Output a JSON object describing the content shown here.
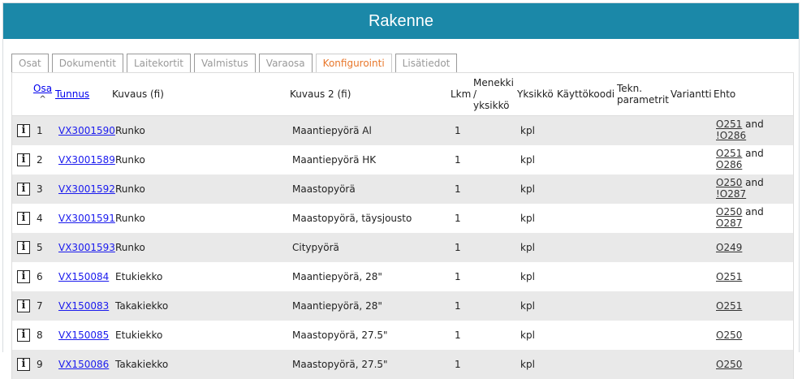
{
  "title": "Rakenne",
  "tabs": [
    {
      "label": "Osat",
      "active": false
    },
    {
      "label": "Dokumentit",
      "active": false
    },
    {
      "label": "Laitekortit",
      "active": false
    },
    {
      "label": "Valmistus",
      "active": false
    },
    {
      "label": "Varaosa",
      "active": false
    },
    {
      "label": "Konfigurointi",
      "active": true
    },
    {
      "label": "Lisätiedot",
      "active": false
    }
  ],
  "columns": {
    "osa": "Osa",
    "sort_indicator": "^",
    "tunnus": "Tunnus",
    "kuvaus": "Kuvaus (fi)",
    "kuvaus2": "Kuvaus 2 (fi)",
    "lkm": "Lkm",
    "menekki": "Menekki / yksikkö",
    "yksikko": "Yksikkö",
    "kayttokoodi": "Käyttökoodi",
    "tekn": "Tekn. parametrit",
    "variantti": "Variantti",
    "ehto": "Ehto"
  },
  "info_icon_glyph": "i",
  "rows": [
    {
      "osa": "1",
      "tunnus": "VX3001590",
      "kuvaus": "Runko",
      "kuvaus2": "Maantiepyörä Al",
      "lkm": "1",
      "yksikko": "kpl",
      "ehto": [
        {
          "t": "O251",
          "link": true
        },
        {
          "t": " and ",
          "link": false
        },
        {
          "t": "!O286",
          "link": true
        }
      ]
    },
    {
      "osa": "2",
      "tunnus": "VX3001589",
      "kuvaus": "Runko",
      "kuvaus2": "Maantiepyörä HK",
      "lkm": "1",
      "yksikko": "kpl",
      "ehto": [
        {
          "t": "O251",
          "link": true
        },
        {
          "t": " and ",
          "link": false
        },
        {
          "t": "O286",
          "link": true
        }
      ]
    },
    {
      "osa": "3",
      "tunnus": "VX3001592",
      "kuvaus": "Runko",
      "kuvaus2": "Maastopyörä",
      "lkm": "1",
      "yksikko": "kpl",
      "ehto": [
        {
          "t": "O250",
          "link": true
        },
        {
          "t": " and ",
          "link": false
        },
        {
          "t": "!O287",
          "link": true
        }
      ]
    },
    {
      "osa": "4",
      "tunnus": "VX3001591",
      "kuvaus": "Runko",
      "kuvaus2": "Maastopyörä, täysjousto",
      "lkm": "1",
      "yksikko": "kpl",
      "ehto": [
        {
          "t": "O250",
          "link": true
        },
        {
          "t": " and ",
          "link": false
        },
        {
          "t": "O287",
          "link": true
        }
      ]
    },
    {
      "osa": "5",
      "tunnus": "VX3001593",
      "kuvaus": "Runko",
      "kuvaus2": "Citypyörä",
      "lkm": "1",
      "yksikko": "kpl",
      "ehto": [
        {
          "t": "O249",
          "link": true
        }
      ]
    },
    {
      "osa": "6",
      "tunnus": "VX150084",
      "kuvaus": "Etukiekko",
      "kuvaus2": "Maantiepyörä, 28\"",
      "lkm": "1",
      "yksikko": "kpl",
      "ehto": [
        {
          "t": "O251",
          "link": true
        }
      ]
    },
    {
      "osa": "7",
      "tunnus": "VX150083",
      "kuvaus": "Takakiekko",
      "kuvaus2": "Maantiepyörä, 28\"",
      "lkm": "1",
      "yksikko": "kpl",
      "ehto": [
        {
          "t": "O251",
          "link": true
        }
      ]
    },
    {
      "osa": "8",
      "tunnus": "VX150085",
      "kuvaus": "Etukiekko",
      "kuvaus2": "Maastopyörä, 27.5\"",
      "lkm": "1",
      "yksikko": "kpl",
      "ehto": [
        {
          "t": "O250",
          "link": true
        }
      ]
    },
    {
      "osa": "9",
      "tunnus": "VX150086",
      "kuvaus": "Takakiekko",
      "kuvaus2": "Maastopyörä, 27.5\"",
      "lkm": "1",
      "yksikko": "kpl",
      "ehto": [
        {
          "t": "O250",
          "link": true
        }
      ]
    }
  ],
  "colors": {
    "header_bg": "#1b88a8",
    "active_tab": "#e8772b",
    "link": "#1a1aee",
    "row_alt": "#e9e9e9"
  }
}
